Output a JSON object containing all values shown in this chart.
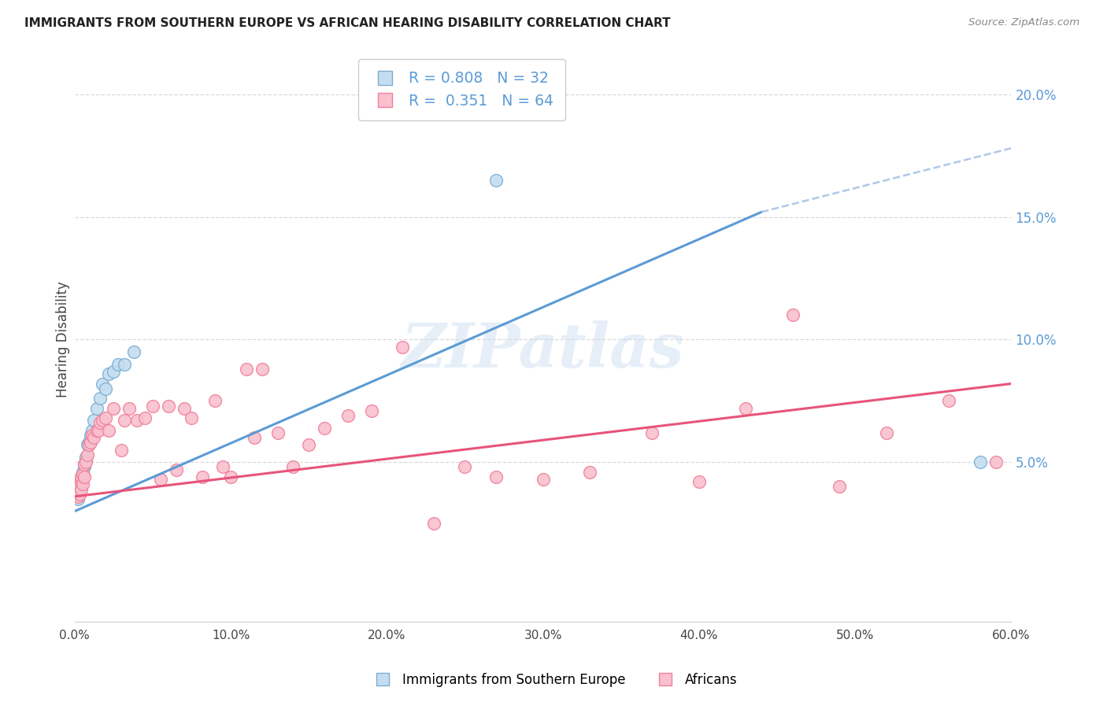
{
  "title": "IMMIGRANTS FROM SOUTHERN EUROPE VS AFRICAN HEARING DISABILITY CORRELATION CHART",
  "source": "Source: ZipAtlas.com",
  "ylabel": "Hearing Disability",
  "right_yticks": [
    0.0,
    0.05,
    0.1,
    0.15,
    0.2
  ],
  "right_yticklabels": [
    "",
    "5.0%",
    "10.0%",
    "15.0%",
    "20.0%"
  ],
  "xlim": [
    0.0,
    0.6
  ],
  "ylim": [
    -0.015,
    0.215
  ],
  "watermark": "ZIPatlas",
  "blue_scatter_x": [
    0.001,
    0.001,
    0.002,
    0.002,
    0.002,
    0.003,
    0.003,
    0.003,
    0.004,
    0.004,
    0.005,
    0.005,
    0.006,
    0.006,
    0.007,
    0.007,
    0.008,
    0.009,
    0.01,
    0.011,
    0.012,
    0.014,
    0.016,
    0.018,
    0.02,
    0.022,
    0.025,
    0.028,
    0.032,
    0.038,
    0.27,
    0.58
  ],
  "blue_scatter_y": [
    0.036,
    0.037,
    0.035,
    0.038,
    0.04,
    0.037,
    0.04,
    0.042,
    0.042,
    0.044,
    0.045,
    0.046,
    0.048,
    0.049,
    0.051,
    0.052,
    0.057,
    0.058,
    0.061,
    0.063,
    0.067,
    0.072,
    0.076,
    0.082,
    0.08,
    0.086,
    0.087,
    0.09,
    0.09,
    0.095,
    0.165,
    0.05
  ],
  "pink_scatter_x": [
    0.001,
    0.001,
    0.002,
    0.002,
    0.003,
    0.003,
    0.004,
    0.004,
    0.004,
    0.005,
    0.005,
    0.006,
    0.006,
    0.007,
    0.008,
    0.009,
    0.01,
    0.011,
    0.012,
    0.014,
    0.015,
    0.016,
    0.018,
    0.02,
    0.022,
    0.025,
    0.03,
    0.032,
    0.035,
    0.04,
    0.045,
    0.05,
    0.055,
    0.06,
    0.065,
    0.07,
    0.075,
    0.082,
    0.09,
    0.095,
    0.1,
    0.11,
    0.115,
    0.12,
    0.13,
    0.14,
    0.15,
    0.16,
    0.175,
    0.19,
    0.21,
    0.23,
    0.25,
    0.27,
    0.3,
    0.33,
    0.37,
    0.4,
    0.43,
    0.46,
    0.49,
    0.52,
    0.56,
    0.59
  ],
  "pink_scatter_y": [
    0.037,
    0.04,
    0.036,
    0.04,
    0.037,
    0.041,
    0.039,
    0.042,
    0.044,
    0.041,
    0.045,
    0.044,
    0.049,
    0.05,
    0.053,
    0.057,
    0.058,
    0.061,
    0.06,
    0.063,
    0.063,
    0.066,
    0.067,
    0.068,
    0.063,
    0.072,
    0.055,
    0.067,
    0.072,
    0.067,
    0.068,
    0.073,
    0.043,
    0.073,
    0.047,
    0.072,
    0.068,
    0.044,
    0.075,
    0.048,
    0.044,
    0.088,
    0.06,
    0.088,
    0.062,
    0.048,
    0.057,
    0.064,
    0.069,
    0.071,
    0.097,
    0.025,
    0.048,
    0.044,
    0.043,
    0.046,
    0.062,
    0.042,
    0.072,
    0.11,
    0.04,
    0.062,
    0.075,
    0.05
  ],
  "blue_line_color": "#5b9bd5",
  "blue_line_dashed_color": "#b0c8e8",
  "pink_line_color": "#e8547a",
  "scatter_blue_facecolor": "#c5ddf0",
  "scatter_blue_edgecolor": "#7bafd4",
  "scatter_pink_facecolor": "#f9c0cf",
  "scatter_pink_edgecolor": "#f0819a",
  "grid_color": "#d0d0d0",
  "background_color": "#ffffff",
  "title_color": "#222222",
  "right_axis_color": "#5b9bd5",
  "blue_line_x0": 0.0,
  "blue_line_y0": 0.03,
  "blue_line_x1": 0.44,
  "blue_line_y1": 0.152,
  "blue_line_dashed_x1": 0.6,
  "blue_line_dashed_y1": 0.178,
  "pink_line_x0": 0.0,
  "pink_line_y0": 0.036,
  "pink_line_x1": 0.6,
  "pink_line_y1": 0.082,
  "legend_R1": "R = 0.808",
  "legend_N1": "N = 32",
  "legend_R2": "R =  0.351",
  "legend_N2": "N = 64",
  "bottom_legend_blue": "Immigrants from Southern Europe",
  "bottom_legend_pink": "Africans",
  "x_ticks": [
    0.0,
    0.1,
    0.2,
    0.3,
    0.4,
    0.5,
    0.6
  ],
  "x_tick_labels": [
    "0.0%",
    "10.0%",
    "20.0%",
    "30.0%",
    "40.0%",
    "50.0%",
    "60.0%"
  ]
}
